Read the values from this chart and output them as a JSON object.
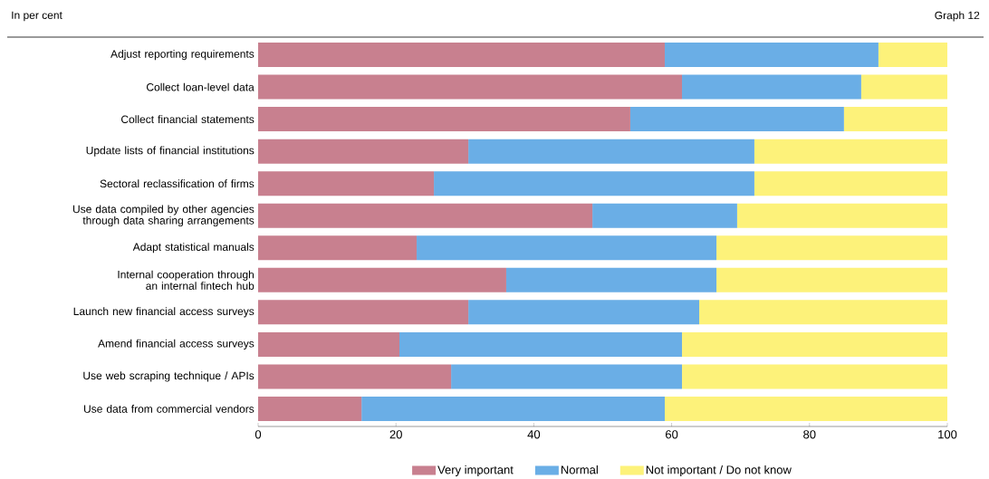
{
  "chart_data": {
    "type": "bar",
    "orientation": "horizontal",
    "stacked": true,
    "subtitle": "In per cent",
    "annotations": [
      "Graph 12"
    ],
    "categories": [
      "Adjust reporting requirements",
      "Collect loan-level data",
      "Collect financial statements",
      "Update lists of financial institutions",
      "Sectoral reclassification of firms",
      "Use data compiled by other agencies through data sharing arrangements",
      "Adapt statistical manuals",
      "Internal cooperation through an internal fintech hub",
      "Launch new financial access surveys",
      "Amend financial access surveys",
      "Use web scraping technique / APIs",
      "Use data from commercial vendors"
    ],
    "series": [
      {
        "name": "Very important",
        "color": "#c8808f",
        "values": [
          59,
          61.5,
          54,
          30.5,
          25.5,
          48.5,
          23,
          36,
          30.5,
          20.5,
          28,
          15
        ]
      },
      {
        "name": "Normal",
        "color": "#6aaee6",
        "values": [
          31,
          26,
          31,
          41.5,
          46.5,
          21,
          43.5,
          30.5,
          33.5,
          41,
          33.5,
          44
        ]
      },
      {
        "name": "Not important / Do not know",
        "color": "#fdf27a",
        "values": [
          10,
          12.5,
          15,
          28,
          28,
          30.5,
          33.5,
          33.5,
          36,
          38.5,
          38.5,
          41
        ]
      }
    ],
    "xlim": [
      0,
      100
    ],
    "xticks": [
      0,
      20,
      40,
      60,
      80,
      100
    ],
    "legend": "bottom"
  }
}
